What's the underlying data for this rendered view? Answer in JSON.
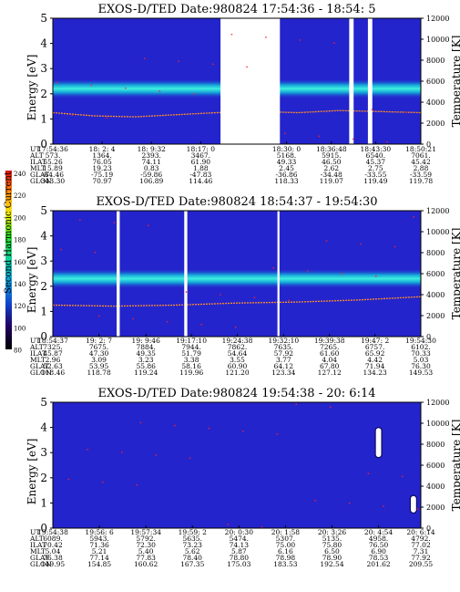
{
  "instrument": "EXOS-D/TED",
  "colorbar": {
    "label": "Second Harmonic Current",
    "ticks": [
      "240",
      "220",
      "200",
      "180",
      "160",
      "140",
      "120",
      "100",
      "80"
    ]
  },
  "row_labels": [
    "UT",
    "ALT",
    "ILAT",
    "MLT",
    "GLAT",
    "GLON"
  ],
  "colors": {
    "background": "#2424cc",
    "band": "#14b4cc",
    "band_core": "#3cf0e0",
    "gap": "#ffffff",
    "trace": "#ff8c28",
    "speck": "#ff2020"
  },
  "chart_data": [
    {
      "type": "heatmap",
      "title": "EXOS-D/TED   Date:980824  17:54:36 - 18:54: 5",
      "ylabel": "Energy [eV]",
      "y2label": "Temperature [K]",
      "yticks": [
        "0",
        "1",
        "2",
        "3",
        "4",
        "5"
      ],
      "y2ticks": [
        "0",
        "2000",
        "4000",
        "6000",
        "8000",
        "10000",
        "12000"
      ],
      "ylim": [
        0,
        5
      ],
      "y2lim": [
        0,
        12000
      ],
      "columns": [
        [
          "17:54:36",
          "573.",
          "55.26",
          "15.89",
          "-64.46",
          "343.30"
        ],
        [
          "18: 2: 4",
          "1364.",
          "76.05",
          "19.23",
          "-75.19",
          "70.97"
        ],
        [
          "18: 9:32",
          "2393.",
          "74.11",
          "0.83",
          "-59.86",
          "106.89"
        ],
        [
          "18:17: 0",
          "3467.",
          "61.90",
          "1.88",
          "-47.83",
          "114.46"
        ],
        [
          "18:30: 0",
          "5168.",
          "49.33",
          "2.45",
          "-36.86",
          "118.33"
        ],
        [
          "18:36:48",
          "5915.",
          "46.50",
          "2.62",
          "-34.48",
          "119.07"
        ],
        [
          "18:43:30",
          "6540.",
          "45.37",
          "2.75",
          "-33.55",
          "119.49"
        ],
        [
          "18:50:21",
          "7061.",
          "45.42",
          "2.88",
          "-33.59",
          "119.78"
        ]
      ],
      "band_energy_ev": 2.2,
      "data_gaps": [
        [
          "18:20:00",
          "18:29:00"
        ],
        [
          "18:39:30",
          "18:40:10"
        ],
        [
          "18:42:20",
          "18:43:00"
        ]
      ],
      "temperature_trace_k": [
        3000,
        2700,
        2600,
        2800,
        3000,
        3100,
        3000,
        3200,
        3100,
        3000
      ]
    },
    {
      "type": "heatmap",
      "title": "EXOS-D/TED   Date:980824  18:54:37 - 19:54:30",
      "ylabel": "Energy [eV]",
      "y2label": "Temperature [K]",
      "yticks": [
        "0",
        "1",
        "2",
        "3",
        "4",
        "5"
      ],
      "y2ticks": [
        "0",
        "2000",
        "4000",
        "6000",
        "8000",
        "10000",
        "12000"
      ],
      "ylim": [
        0,
        5
      ],
      "y2lim": [
        0,
        12000
      ],
      "columns": [
        [
          "18:54:37",
          "7325.",
          "45.87",
          "2.96",
          "52.63",
          "118.46"
        ],
        [
          "19: 2: 7",
          "7675.",
          "47.30",
          "3.09",
          "53.95",
          "118.78"
        ],
        [
          "19: 9:46",
          "7884.",
          "49.35",
          "3.23",
          "55.86",
          "119.24"
        ],
        [
          "19:17:10",
          "7944.",
          "51.79",
          "3.38",
          "58.16",
          "119.96"
        ],
        [
          "19:24:38",
          "7862.",
          "54.64",
          "3.55",
          "60.90",
          "121.20"
        ],
        [
          "19:32:10",
          "7635.",
          "57.92",
          "3.77",
          "64.12",
          "123.34"
        ],
        [
          "19:39:38",
          "7265.",
          "61.60",
          "4.04",
          "67.80",
          "127.12"
        ],
        [
          "19:47: 2",
          "6757.",
          "65.92",
          "4.42",
          "71.94",
          "134.23"
        ],
        [
          "19:54:30",
          "6102.",
          "70.33",
          "5.03",
          "76.30",
          "149.53"
        ]
      ],
      "band_energy_ev": 2.3,
      "data_gaps": [
        [
          "19:05:00",
          "19:05:30"
        ],
        [
          "19:16:00",
          "19:16:30"
        ],
        [
          "19:31:10",
          "19:31:30"
        ]
      ],
      "temperature_trace_k": [
        3000,
        2900,
        3000,
        3200,
        3300,
        3500,
        3800
      ]
    },
    {
      "type": "heatmap",
      "title": "EXOS-D/TED   Date:980824  19:54:38 - 20: 6:14",
      "ylabel": "Energy [eV]",
      "y2label": "Temperature [K]",
      "yticks": [
        "0",
        "1",
        "2",
        "3",
        "4",
        "5"
      ],
      "y2ticks": [
        "0",
        "2000",
        "4000",
        "6000",
        "8000",
        "10000",
        "12000"
      ],
      "ylim": [
        0,
        5
      ],
      "y2lim": [
        0,
        12000
      ],
      "columns": [
        [
          "19:54:38",
          "6089.",
          "70.42",
          "5.04",
          "76.38",
          "149.95"
        ],
        [
          "19:56: 6",
          "5943.",
          "71.36",
          "5.21",
          "77.14",
          "154.85"
        ],
        [
          "19:57:34",
          "5792.",
          "72.30",
          "5.40",
          "77.83",
          "160.62"
        ],
        [
          "19:59: 2",
          "5635.",
          "73.23",
          "5.62",
          "78.40",
          "167.35"
        ],
        [
          "20: 0:30",
          "5474.",
          "74.13",
          "5.87",
          "78.80",
          "175.03"
        ],
        [
          "20: 1:58",
          "5307.",
          "75.00",
          "6.16",
          "78.98",
          "183.53"
        ],
        [
          "20: 3:26",
          "5135.",
          "75.80",
          "6.50",
          "78.90",
          "192.54"
        ],
        [
          "20: 4:54",
          "4958.",
          "76.50",
          "6.90",
          "78.53",
          "201.62"
        ],
        [
          "20: 6:14",
          "4792.",
          "77.02",
          "7.31",
          "77.92",
          "209.55"
        ]
      ],
      "events": [
        {
          "time": "20:04:54",
          "energy_ev_range": [
            2.8,
            4.0
          ]
        },
        {
          "time": "20:06:00",
          "energy_ev_range": [
            0.6,
            1.3
          ]
        }
      ]
    }
  ]
}
